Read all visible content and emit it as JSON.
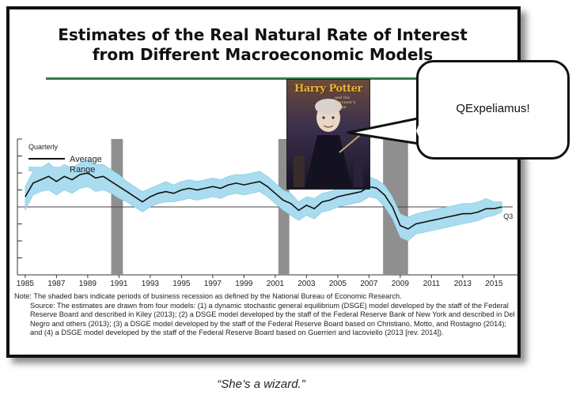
{
  "title_line1": "Estimates of the Real Natural Rate of Interest",
  "title_line2": "from Different Macroeconomic Models",
  "note_line": "Note:  The shaded bars indicate periods of business recession as defined by the National Bureau of Economic Research.",
  "source_line": "Source:  The estimates are drawn from four models: (1) a dynamic stochastic general equilibrium (DSGE) model developed by the staff of the Federal Reserve Board and described in Kiley (2013); (2) a DSGE model developed by the staff of the Federal Reserve Bank of New York and described in Del Negro and others (2013); (3) a DSGE model developed by the staff of the Federal Reserve Board based on Christiano, Motto, and Rostagno (2014); and (4) a DSGE model developed by the staff of the Federal Reserve Board based on Guerrieri and Iacoviello (2013 [rev. 2014]).",
  "bubble_text": "QExpeliamus!",
  "caption": "“She’s a wizard.”",
  "poster": {
    "title": "Harry Potter",
    "subtitle": "and the Sorcerer's Stone"
  },
  "chart_data": {
    "type": "line",
    "frequency_label": "Quarterly",
    "end_label": "Q3",
    "legend": [
      {
        "name": "Average",
        "color": "#111111"
      },
      {
        "name": "Range",
        "color": "#a9dcef"
      }
    ],
    "x_ticks": [
      "1985",
      "1987",
      "1989",
      "1991",
      "1993",
      "1995",
      "1997",
      "1999",
      "2001",
      "2003",
      "2005",
      "2007",
      "2009",
      "2011",
      "2013",
      "2015"
    ],
    "xlim": [
      1984.5,
      2016.5
    ],
    "ylim": [
      -4,
      4
    ],
    "recessions": [
      [
        1990.5,
        1991.25
      ],
      [
        2001.2,
        2001.9
      ],
      [
        2007.9,
        2009.5
      ]
    ],
    "series": [
      {
        "name": "Average",
        "x": [
          1985,
          1985.5,
          1986,
          1986.5,
          1987,
          1987.5,
          1988,
          1988.5,
          1989,
          1989.5,
          1990,
          1990.5,
          1991,
          1991.5,
          1992,
          1992.5,
          1993,
          1993.5,
          1994,
          1994.5,
          1995,
          1995.5,
          1996,
          1996.5,
          1997,
          1997.5,
          1998,
          1998.5,
          1999,
          1999.5,
          2000,
          2000.5,
          2001,
          2001.5,
          2002,
          2002.5,
          2003,
          2003.5,
          2004,
          2004.5,
          2005,
          2005.5,
          2006,
          2006.5,
          2007,
          2007.5,
          2008,
          2008.5,
          2009,
          2009.5,
          2010,
          2010.5,
          2011,
          2011.5,
          2012,
          2012.5,
          2013,
          2013.5,
          2014,
          2014.5,
          2015,
          2015.5
        ],
        "values": [
          0.6,
          1.4,
          1.6,
          1.8,
          1.5,
          1.8,
          1.6,
          1.9,
          2.0,
          1.7,
          1.8,
          1.5,
          1.2,
          0.9,
          0.6,
          0.3,
          0.6,
          0.8,
          0.9,
          0.8,
          1.0,
          1.1,
          1.0,
          1.1,
          1.2,
          1.1,
          1.3,
          1.4,
          1.3,
          1.4,
          1.5,
          1.2,
          0.8,
          0.4,
          0.2,
          -0.2,
          0.1,
          -0.1,
          0.3,
          0.4,
          0.6,
          0.7,
          0.8,
          0.9,
          1.2,
          1.1,
          0.7,
          0.0,
          -1.1,
          -1.3,
          -1.0,
          -0.9,
          -0.8,
          -0.7,
          -0.6,
          -0.5,
          -0.4,
          -0.4,
          -0.3,
          -0.1,
          -0.1,
          0.0
        ]
      },
      {
        "name": "Range",
        "x": [
          1985,
          1985.5,
          1986,
          1986.5,
          1987,
          1987.5,
          1988,
          1988.5,
          1989,
          1989.5,
          1990,
          1990.5,
          1991,
          1991.5,
          1992,
          1992.5,
          1993,
          1993.5,
          1994,
          1994.5,
          1995,
          1995.5,
          1996,
          1996.5,
          1997,
          1997.5,
          1998,
          1998.5,
          1999,
          1999.5,
          2000,
          2000.5,
          2001,
          2001.5,
          2002,
          2002.5,
          2003,
          2003.5,
          2004,
          2004.5,
          2005,
          2005.5,
          2006,
          2006.5,
          2007,
          2007.5,
          2008,
          2008.5,
          2009,
          2009.5,
          2010,
          2010.5,
          2011,
          2011.5,
          2012,
          2012.5,
          2013,
          2013.5,
          2014,
          2014.5,
          2015,
          2015.5
        ],
        "low": [
          -0.2,
          0.7,
          0.9,
          1.0,
          0.7,
          1.0,
          0.8,
          1.1,
          1.2,
          0.9,
          1.0,
          0.8,
          0.5,
          0.3,
          0.0,
          -0.3,
          0.0,
          0.2,
          0.3,
          0.3,
          0.4,
          0.5,
          0.4,
          0.5,
          0.6,
          0.5,
          0.7,
          0.8,
          0.7,
          0.8,
          0.9,
          0.6,
          0.2,
          -0.2,
          -0.5,
          -0.8,
          -0.5,
          -0.7,
          -0.3,
          -0.2,
          0.0,
          0.1,
          0.2,
          0.3,
          0.6,
          0.5,
          0.0,
          -0.7,
          -1.8,
          -2.0,
          -1.6,
          -1.5,
          -1.4,
          -1.3,
          -1.2,
          -1.1,
          -1.0,
          -0.9,
          -0.8,
          -0.6,
          -0.5,
          -0.3
        ],
        "high": [
          1.2,
          2.1,
          2.3,
          2.6,
          2.2,
          2.5,
          2.3,
          2.6,
          2.8,
          2.5,
          2.5,
          2.2,
          1.9,
          1.5,
          1.2,
          0.9,
          1.1,
          1.3,
          1.5,
          1.3,
          1.5,
          1.6,
          1.5,
          1.6,
          1.7,
          1.6,
          1.8,
          1.9,
          1.9,
          2.0,
          2.1,
          1.8,
          1.4,
          1.0,
          0.8,
          0.3,
          0.6,
          0.5,
          0.8,
          0.9,
          1.1,
          1.2,
          1.3,
          1.5,
          1.8,
          1.6,
          1.3,
          0.6,
          -0.4,
          -0.6,
          -0.4,
          -0.3,
          -0.2,
          -0.1,
          0.0,
          0.1,
          0.2,
          0.2,
          0.3,
          0.5,
          0.3,
          0.3
        ]
      }
    ]
  }
}
